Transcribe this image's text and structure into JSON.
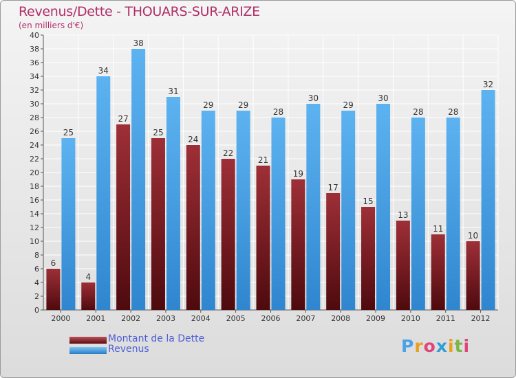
{
  "chart_data": {
    "type": "bar",
    "title": "Revenus/Dette - THOUARS-SUR-ARIZE",
    "subtitle": "(en milliers d'€)",
    "categories": [
      "2000",
      "2001",
      "2002",
      "2003",
      "2004",
      "2005",
      "2006",
      "2007",
      "2008",
      "2009",
      "2010",
      "2011",
      "2012"
    ],
    "series": [
      {
        "name": "Montant de la Dette",
        "values": [
          6,
          4,
          27,
          25,
          24,
          22,
          21,
          19,
          17,
          15,
          13,
          11,
          10
        ],
        "color": "#7a1f24"
      },
      {
        "name": "Revenus",
        "values": [
          25,
          34,
          38,
          31,
          29,
          29,
          28,
          30,
          29,
          30,
          28,
          28,
          32
        ],
        "color": "#4aa3e6"
      }
    ],
    "ylim": [
      0,
      40
    ],
    "ytick_step": 2,
    "grid": true,
    "legend_position": "bottom-left"
  },
  "logo": {
    "text": "Proxiti",
    "colors": [
      "#4aa3e6",
      "#e8a020",
      "#e0457a",
      "#2e9fd6",
      "#e8a020",
      "#7ab648",
      "#e0457a"
    ]
  }
}
